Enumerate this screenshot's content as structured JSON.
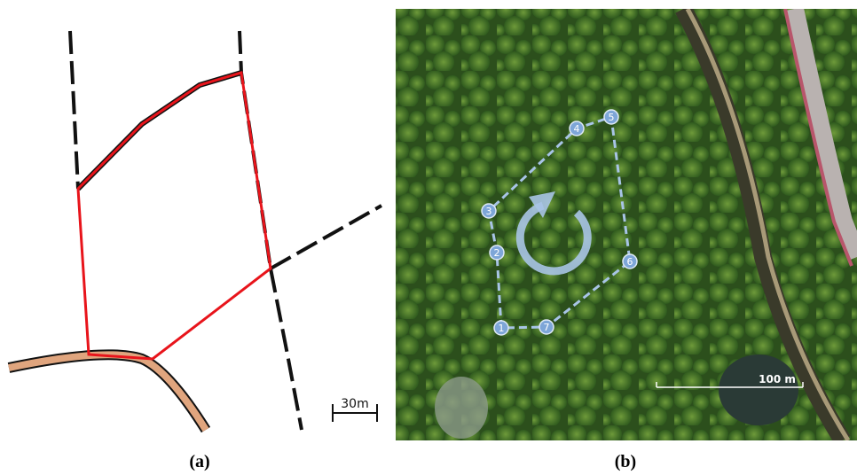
{
  "panels": [
    {
      "label": "(a)",
      "scale_label": "30m"
    },
    {
      "label": "(b)",
      "scale_label": "100 m",
      "waypoints": [
        "1",
        "2",
        "3",
        "4",
        "5",
        "6",
        "7"
      ]
    }
  ]
}
